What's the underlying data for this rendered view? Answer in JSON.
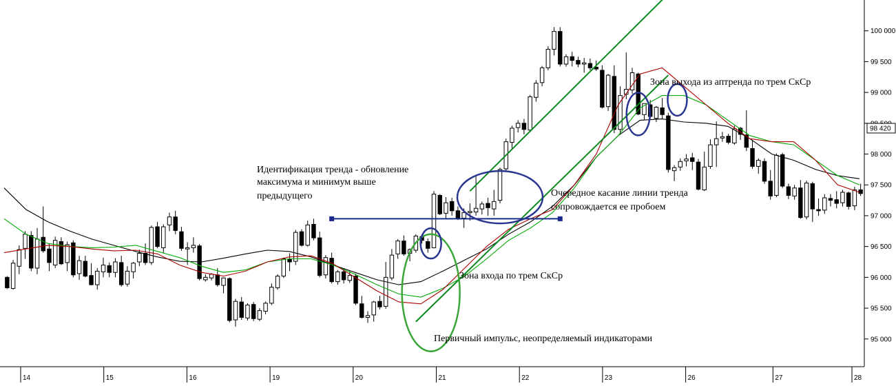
{
  "chart_data": {
    "type": "candlestick",
    "y_axis": {
      "ticks": [
        "95 000",
        "95 500",
        "96 000",
        "96 500",
        "97 000",
        "97 500",
        "98 000",
        "98 500",
        "99 000",
        "99 500",
        "100 000"
      ],
      "tick_values": [
        95000,
        95500,
        96000,
        96500,
        97000,
        97500,
        98000,
        98500,
        99000,
        99500,
        100000
      ],
      "range": [
        94550,
        100500
      ],
      "position": "right",
      "last_price_label": "98 420",
      "last_price": 98420
    },
    "x_axis": {
      "labels": [
        "14",
        "15",
        "16",
        "19",
        "20",
        "21",
        "22",
        "23",
        "26",
        "27",
        "28"
      ],
      "label_bar_index": [
        5,
        25,
        45,
        65,
        85,
        105,
        125,
        145,
        165,
        186,
        205
      ]
    },
    "candles_ohlc": [
      [
        96000,
        96020,
        95810,
        95830
      ],
      [
        95820,
        96280,
        95800,
        96230
      ],
      [
        96180,
        96520,
        96050,
        96450
      ],
      [
        96470,
        96750,
        96300,
        96700
      ],
      [
        96680,
        96750,
        96100,
        96150
      ],
      [
        96150,
        96800,
        96050,
        96620
      ],
      [
        96650,
        97150,
        96400,
        96430
      ],
      [
        96460,
        96540,
        96100,
        96240
      ],
      [
        96200,
        96660,
        96150,
        96600
      ],
      [
        96580,
        96650,
        96200,
        96220
      ],
      [
        96240,
        96580,
        96100,
        96530
      ],
      [
        96560,
        96600,
        96000,
        96040
      ],
      [
        96060,
        96350,
        95960,
        96270
      ],
      [
        96260,
        96350,
        96000,
        96020
      ],
      [
        96030,
        96230,
        95870,
        95880
      ],
      [
        95880,
        96150,
        95800,
        96100
      ],
      [
        96090,
        96320,
        96000,
        96200
      ],
      [
        96190,
        96240,
        96000,
        96080
      ],
      [
        96080,
        96310,
        96000,
        96250
      ],
      [
        96240,
        96350,
        95850,
        95880
      ],
      [
        95890,
        96180,
        95850,
        96100
      ],
      [
        96090,
        96250,
        95980,
        96230
      ],
      [
        96250,
        96450,
        96180,
        96390
      ],
      [
        96390,
        96550,
        96200,
        96240
      ],
      [
        96240,
        96840,
        96200,
        96810
      ],
      [
        96820,
        96900,
        96470,
        96500
      ],
      [
        96480,
        96860,
        96400,
        96820
      ],
      [
        96850,
        97050,
        96750,
        96980
      ],
      [
        96980,
        97080,
        96700,
        96760
      ],
      [
        96740,
        96820,
        96430,
        96470
      ],
      [
        96460,
        96570,
        96200,
        96480
      ],
      [
        96480,
        96650,
        96400,
        96520
      ],
      [
        96510,
        96540,
        95950,
        95980
      ],
      [
        95960,
        96050,
        95930,
        96000
      ],
      [
        95990,
        96070,
        95950,
        96050
      ],
      [
        96040,
        96150,
        95850,
        95880
      ],
      [
        95870,
        96000,
        95740,
        95990
      ],
      [
        95980,
        96000,
        95270,
        95300
      ],
      [
        95310,
        95650,
        95200,
        95610
      ],
      [
        95600,
        95680,
        95310,
        95350
      ],
      [
        95340,
        95580,
        95300,
        95550
      ],
      [
        95560,
        95600,
        95290,
        95330
      ],
      [
        95320,
        95500,
        95290,
        95460
      ],
      [
        95450,
        95610,
        95400,
        95580
      ],
      [
        95580,
        95900,
        95550,
        95840
      ],
      [
        95830,
        96050,
        95800,
        96020
      ],
      [
        96020,
        96320,
        95990,
        96300
      ],
      [
        96290,
        96390,
        96100,
        96250
      ],
      [
        96260,
        96770,
        96200,
        96730
      ],
      [
        96740,
        96780,
        96500,
        96520
      ],
      [
        96520,
        96920,
        96500,
        96850
      ],
      [
        96860,
        96950,
        96600,
        96640
      ],
      [
        96640,
        96740,
        96000,
        96030
      ],
      [
        96040,
        96360,
        95980,
        96320
      ],
      [
        96310,
        96400,
        95900,
        95930
      ],
      [
        95930,
        96120,
        95880,
        96090
      ],
      [
        96090,
        96150,
        95900,
        95960
      ],
      [
        95950,
        96100,
        95910,
        96030
      ],
      [
        96020,
        96060,
        95550,
        95580
      ],
      [
        95570,
        95700,
        95330,
        95350
      ],
      [
        95350,
        95450,
        95260,
        95380
      ],
      [
        95390,
        95620,
        95280,
        95600
      ],
      [
        95610,
        95700,
        95480,
        95520
      ],
      [
        95530,
        96250,
        95490,
        96000
      ],
      [
        95990,
        96460,
        95950,
        96360
      ],
      [
        96380,
        96620,
        96300,
        96590
      ],
      [
        96590,
        96680,
        96350,
        96380
      ],
      [
        96390,
        96470,
        96260,
        96450
      ],
      [
        96440,
        96700,
        96400,
        96670
      ],
      [
        96660,
        96700,
        96550,
        96600
      ],
      [
        96580,
        96630,
        96400,
        96470
      ],
      [
        96480,
        97400,
        96470,
        97350
      ],
      [
        97330,
        97350,
        97010,
        97030
      ],
      [
        97040,
        97300,
        96960,
        97210
      ],
      [
        97230,
        97290,
        97000,
        97080
      ],
      [
        97080,
        97150,
        96930,
        96960
      ],
      [
        96960,
        97120,
        96800,
        97050
      ],
      [
        97050,
        97200,
        96920,
        97070
      ],
      [
        97060,
        97660,
        97000,
        97120
      ],
      [
        97110,
        97230,
        97020,
        97190
      ],
      [
        97200,
        97290,
        97000,
        97130
      ],
      [
        97110,
        97420,
        97000,
        97230
      ],
      [
        97250,
        97780,
        97200,
        97750
      ],
      [
        97760,
        98250,
        97720,
        98200
      ],
      [
        98190,
        98460,
        98080,
        98420
      ],
      [
        98430,
        98550,
        98350,
        98500
      ],
      [
        98500,
        98570,
        98320,
        98400
      ],
      [
        98390,
        98960,
        98360,
        98930
      ],
      [
        98920,
        99200,
        98850,
        99150
      ],
      [
        99160,
        99430,
        99100,
        99400
      ],
      [
        99400,
        99750,
        99360,
        99700
      ],
      [
        99700,
        100060,
        99600,
        99990
      ],
      [
        99990,
        100060,
        99420,
        99460
      ],
      [
        99460,
        99620,
        99420,
        99580
      ],
      [
        99580,
        99660,
        99420,
        99520
      ],
      [
        99520,
        99580,
        99410,
        99460
      ],
      [
        99460,
        99560,
        99320,
        99480
      ],
      [
        99470,
        99550,
        99360,
        99400
      ],
      [
        99410,
        99520,
        99350,
        99380
      ],
      [
        99360,
        99440,
        98740,
        98760
      ],
      [
        98770,
        99300,
        98700,
        99280
      ],
      [
        99260,
        99440,
        98340,
        98400
      ],
      [
        98400,
        99100,
        98320,
        98950
      ],
      [
        98970,
        99650,
        98890,
        99050
      ],
      [
        99040,
        99400,
        98980,
        99320
      ],
      [
        99300,
        99320,
        98630,
        98650
      ],
      [
        98640,
        98820,
        98560,
        98820
      ],
      [
        98800,
        98880,
        98560,
        98610
      ],
      [
        98580,
        98780,
        98520,
        98760
      ],
      [
        98750,
        98910,
        98560,
        98640
      ],
      [
        98620,
        98670,
        97700,
        97750
      ],
      [
        97730,
        97820,
        97560,
        97780
      ],
      [
        97790,
        97930,
        97730,
        97880
      ],
      [
        97890,
        98000,
        97800,
        97920
      ],
      [
        97940,
        98020,
        97740,
        97880
      ],
      [
        97870,
        97920,
        97410,
        97430
      ],
      [
        97420,
        98040,
        97400,
        97790
      ],
      [
        97800,
        98240,
        97760,
        98150
      ],
      [
        98150,
        98530,
        97790,
        98250
      ],
      [
        98260,
        98360,
        98200,
        98280
      ],
      [
        98290,
        98330,
        98160,
        98190
      ],
      [
        98180,
        98460,
        98150,
        98410
      ],
      [
        98420,
        98440,
        98230,
        98320
      ],
      [
        98310,
        98710,
        98050,
        98110
      ],
      [
        98090,
        98220,
        97760,
        97800
      ],
      [
        97800,
        97930,
        97680,
        97900
      ],
      [
        97880,
        97930,
        97520,
        97560
      ],
      [
        97560,
        97740,
        97260,
        97320
      ],
      [
        97330,
        98010,
        97300,
        97980
      ],
      [
        97990,
        98020,
        97450,
        97480
      ],
      [
        97470,
        97520,
        97270,
        97330
      ],
      [
        97320,
        97500,
        97260,
        97450
      ],
      [
        97450,
        97580,
        96950,
        96970
      ],
      [
        96980,
        97570,
        96940,
        97530
      ],
      [
        97520,
        97550,
        96900,
        97110
      ],
      [
        97100,
        97280,
        97000,
        97080
      ],
      [
        97090,
        97350,
        97030,
        97290
      ],
      [
        97280,
        97350,
        97150,
        97250
      ],
      [
        97260,
        97400,
        97120,
        97200
      ],
      [
        97210,
        97420,
        97150,
        97380
      ],
      [
        97370,
        97390,
        97100,
        97150
      ],
      [
        97160,
        97470,
        97090,
        97420
      ],
      [
        97420,
        97520,
        97320,
        97360
      ]
    ],
    "series": [
      {
        "name": "",
        "color": "#000000",
        "values": [
          97450,
          97100,
          96900,
          96750,
          96620,
          96520,
          96420,
          96330,
          96260,
          96250,
          96310,
          96380,
          96440,
          96420,
          96330,
          96200,
          96080,
          95960,
          95880,
          95930,
          96100,
          96280,
          96460,
          96700,
          96900,
          97150,
          97500,
          97950,
          98300,
          98550,
          98570,
          98520,
          98500,
          98450,
          98250,
          98000,
          97900,
          97750,
          97650,
          97600
        ]
      },
      {
        "name": "",
        "color": "#00aa00",
        "values": [
          96950,
          96700,
          96550,
          96500,
          96480,
          96490,
          96520,
          96420,
          96320,
          96180,
          96080,
          96120,
          96250,
          96300,
          96300,
          96200,
          96050,
          95880,
          95730,
          95680,
          95820,
          96020,
          96300,
          96600,
          96800,
          97050,
          97450,
          97950,
          98300,
          98750,
          98950,
          98950,
          98800,
          98550,
          98300,
          98200,
          98150,
          97900,
          97650,
          97500
        ]
      },
      {
        "name": "",
        "color": "#aa0000",
        "values": [
          96400,
          96460,
          96520,
          96500,
          96460,
          96430,
          96440,
          96380,
          96200,
          96080,
          96020,
          96100,
          96250,
          96330,
          96350,
          96220,
          96000,
          95780,
          95600,
          95570,
          95800,
          96150,
          96500,
          96780,
          96950,
          97100,
          97500,
          98000,
          98800,
          99300,
          99400,
          99100,
          98800,
          98500,
          98250,
          98200,
          98200,
          97900,
          97500,
          97380
        ]
      }
    ],
    "annotations": [
      "Идентификация тренда - обновление",
      "максимума и минимум выше",
      "предыдущего",
      "Зона входа по трем СкСр",
      "Первичный импульс, неопределяемый индикаторами",
      "Зона выхода из аптренда по трем СкСр",
      "Очередное касание линии тренда",
      "сопровождается ее пробоем"
    ],
    "grid": false,
    "legend": "none"
  }
}
